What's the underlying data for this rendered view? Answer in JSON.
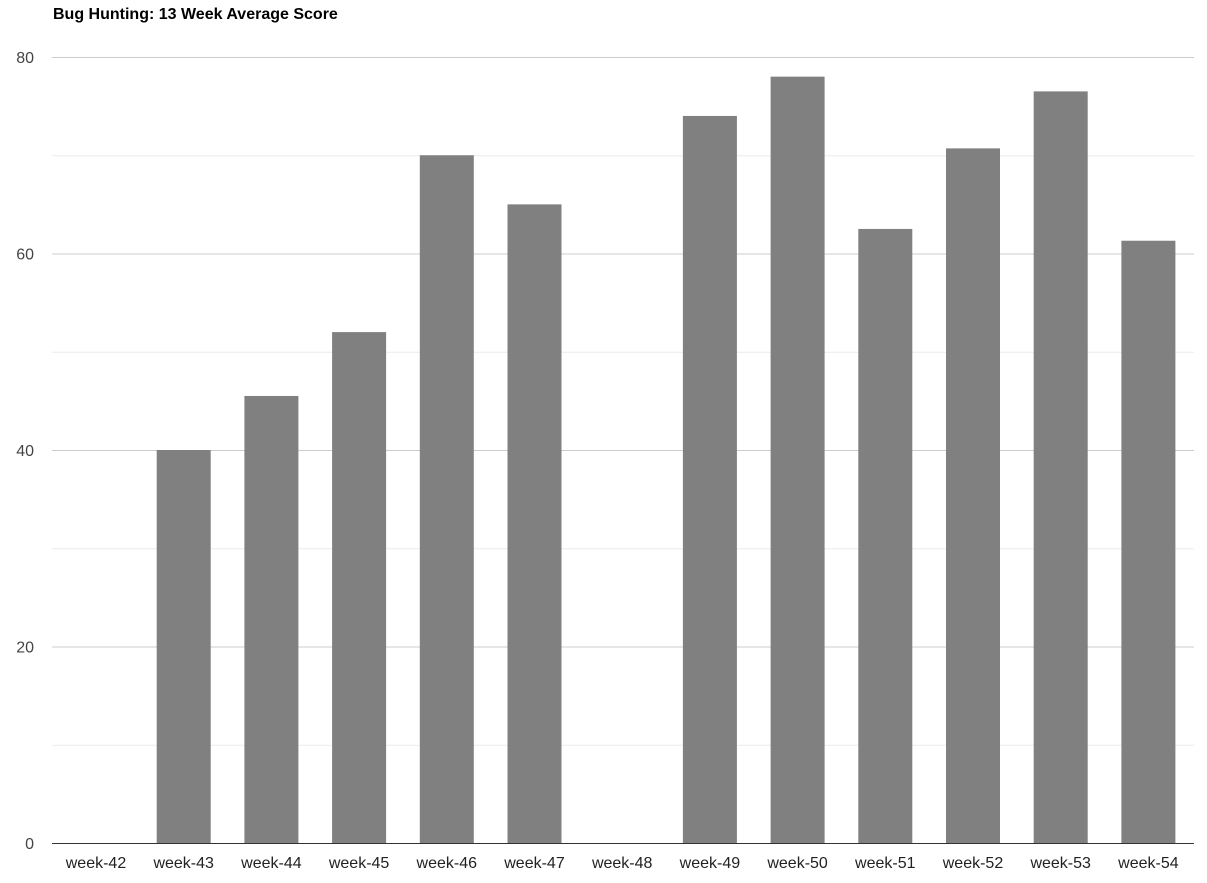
{
  "chart_data": {
    "type": "bar",
    "title": "Bug Hunting: 13 Week Average Score",
    "xlabel": "",
    "ylabel": "",
    "categories": [
      "week-42",
      "week-43",
      "week-44",
      "week-45",
      "week-46",
      "week-47",
      "week-48",
      "week-49",
      "week-50",
      "week-51",
      "week-52",
      "week-53",
      "week-54"
    ],
    "values": [
      0,
      40,
      45.5,
      52,
      70,
      65,
      0,
      74,
      78,
      62.5,
      70.7,
      76.5,
      61.3
    ],
    "ylim": [
      0,
      80
    ],
    "yticks": [
      "0",
      "20",
      "40",
      "60",
      "80"
    ],
    "grid": true,
    "bar_color": "#808080",
    "grid_color": "#cccccc",
    "minor_grid_color": "#ebebeb",
    "axis_color": "#333333"
  }
}
